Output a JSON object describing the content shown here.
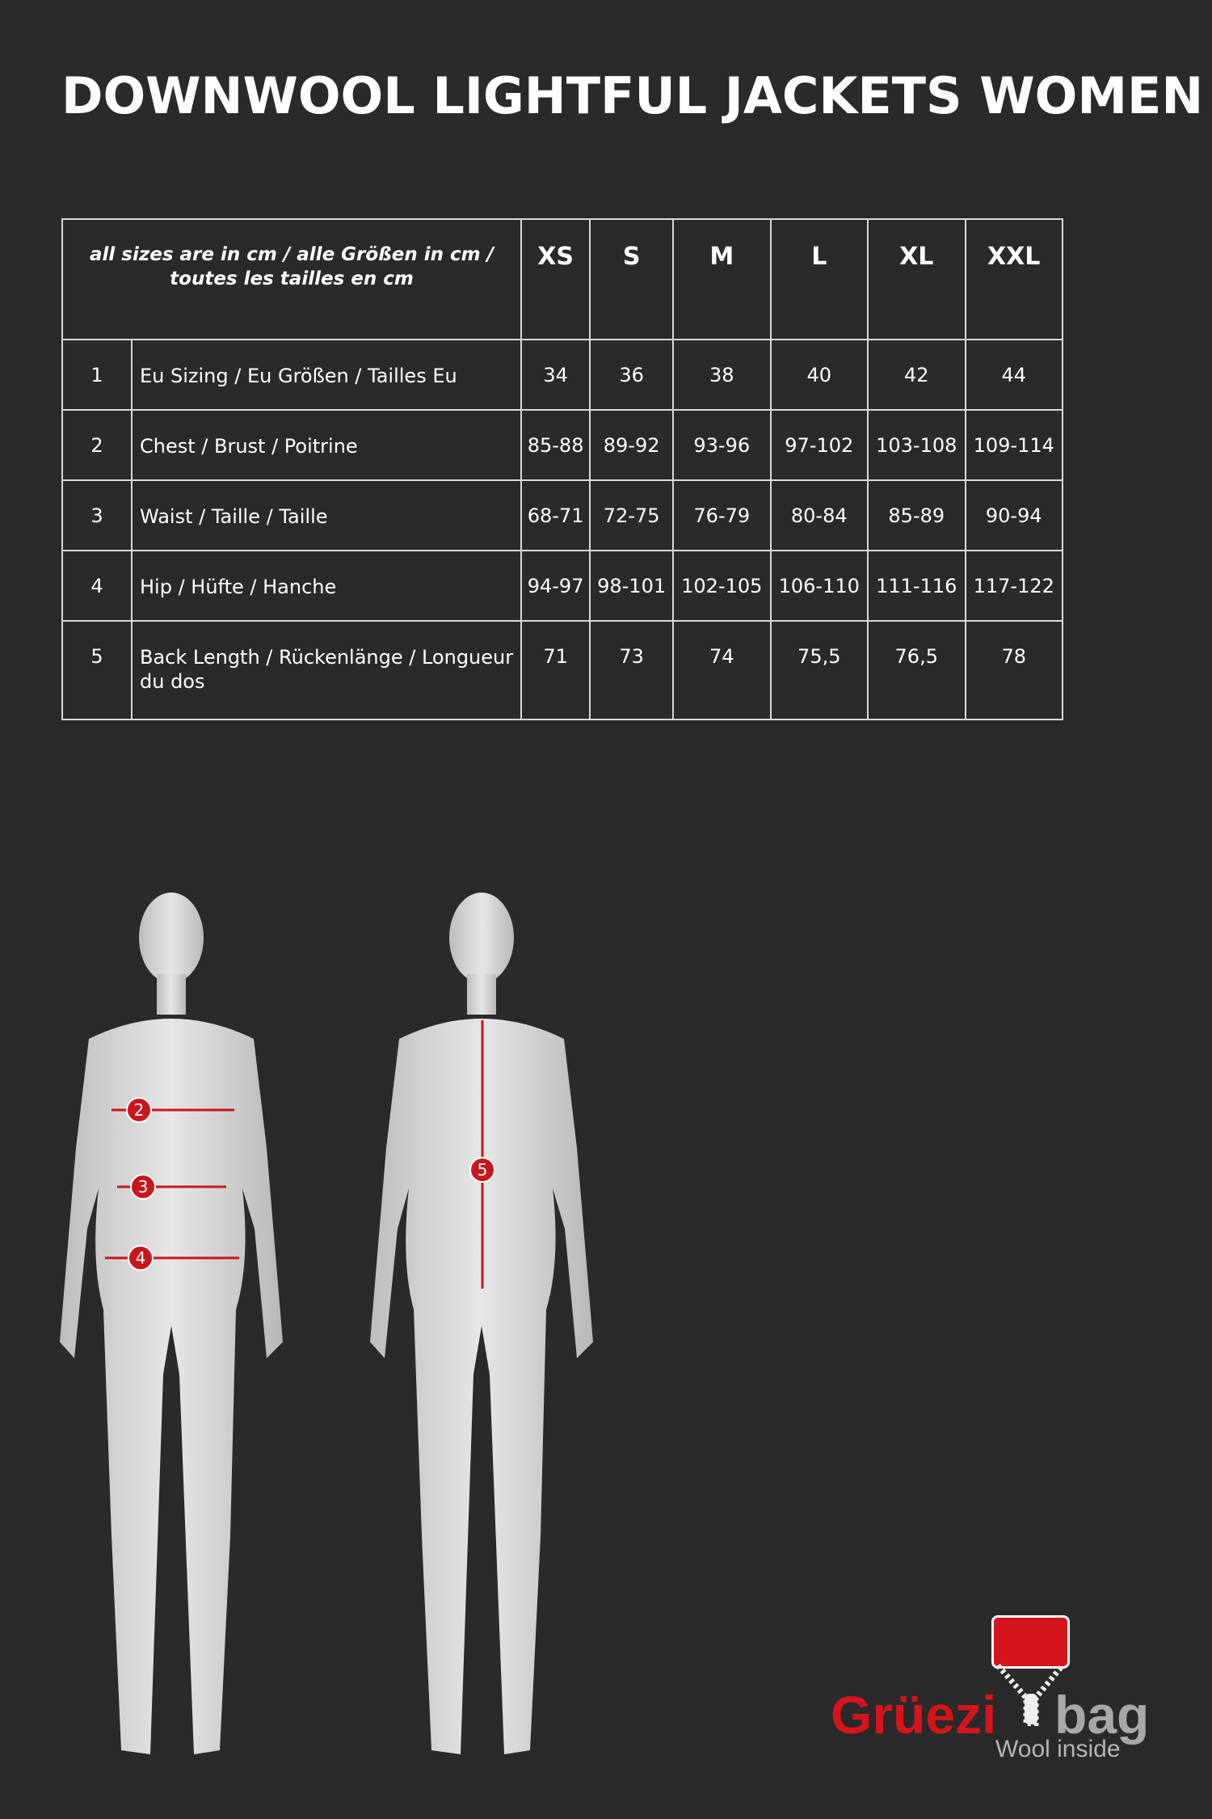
{
  "title": "DOWNWOOL LIGHTFUL JACKETS WOMEN",
  "table": {
    "note": "all sizes are in cm / alle Größen in cm / toutes les tailles en cm",
    "sizes": [
      "XS",
      "S",
      "M",
      "L",
      "XL",
      "XXL"
    ],
    "rows": [
      {
        "num": "1",
        "label": "Eu Sizing / Eu Größen / Tailles Eu",
        "values": [
          "34",
          "36",
          "38",
          "40",
          "42",
          "44"
        ]
      },
      {
        "num": "2",
        "label": "Chest / Brust / Poitrine",
        "values": [
          "85-88",
          "89-92",
          "93-96",
          "97-102",
          "103-108",
          "109-114"
        ]
      },
      {
        "num": "3",
        "label": "Waist / Taille / Taille",
        "values": [
          "68-71",
          "72-75",
          "76-79",
          "80-84",
          "85-89",
          "90-94"
        ]
      },
      {
        "num": "4",
        "label": "Hip / Hüfte / Hanche",
        "values": [
          "94-97",
          "98-101",
          "102-105",
          "106-110",
          "111-116",
          "117-122"
        ]
      },
      {
        "num": "5",
        "label": "Back Length / Rückenlänge / Longueur du dos",
        "values": [
          "71",
          "73",
          "74",
          "75,5",
          "76,5",
          "78"
        ]
      }
    ]
  },
  "markers": {
    "chest": "2",
    "waist": "3",
    "hip": "4",
    "back": "5"
  },
  "colors": {
    "background": "#2a2a2a",
    "marker": "#c8161d",
    "brand_red": "#d4151b",
    "brand_gray": "#a8a8a8"
  },
  "logo": {
    "brand_part1": "Grüezi",
    "brand_part2": "bag",
    "tagline": "Wool inside"
  }
}
